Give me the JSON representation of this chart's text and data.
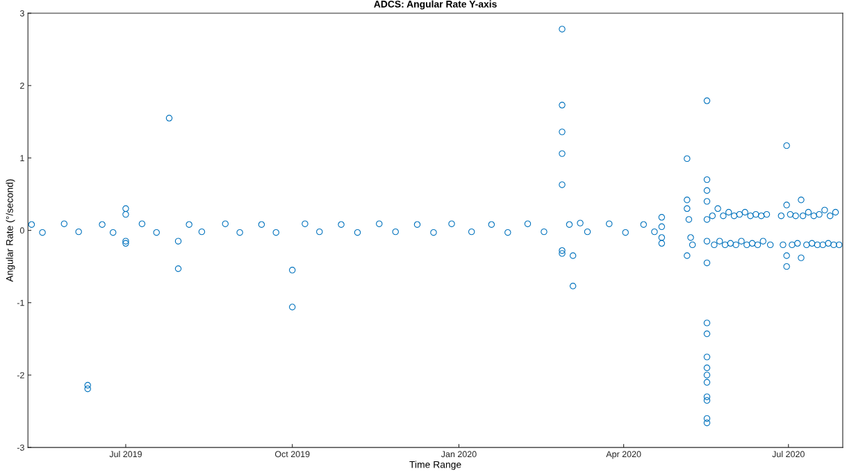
{
  "chart_data": {
    "type": "scatter",
    "title": "ADCS: Angular Rate Y-axis",
    "xlabel": "Time Range",
    "ylabel": "Angular Rate (°/second)",
    "xlim": [
      "2019-05-08",
      "2020-07-31"
    ],
    "ylim": [
      -3,
      3
    ],
    "xticks": [
      {
        "value": "2019-07-01",
        "label": "Jul 2019"
      },
      {
        "value": "2019-10-01",
        "label": "Oct 2019"
      },
      {
        "value": "2020-01-01",
        "label": "Jan 2020"
      },
      {
        "value": "2020-04-01",
        "label": "Apr 2020"
      },
      {
        "value": "2020-07-01",
        "label": "Jul 2020"
      }
    ],
    "yticks": [
      -3,
      -2,
      -1,
      0,
      1,
      2,
      3
    ],
    "grid": false,
    "marker": "circle",
    "series": [
      {
        "color": "#0072bd",
        "x": [
          "2019-05-10",
          "2019-05-16",
          "2019-05-28",
          "2019-06-05",
          "2019-06-18",
          "2019-06-24",
          "2019-07-10",
          "2019-07-18",
          "2019-08-05",
          "2019-08-12",
          "2019-08-25",
          "2019-09-02",
          "2019-09-14",
          "2019-09-22",
          "2019-10-08",
          "2019-10-16",
          "2019-10-28",
          "2019-11-06",
          "2019-11-18",
          "2019-11-27",
          "2019-12-09",
          "2019-12-18",
          "2019-12-28",
          "2020-01-08",
          "2020-01-19",
          "2020-01-28",
          "2020-02-08",
          "2020-02-17",
          "2020-03-02",
          "2020-03-08",
          "2020-03-12",
          "2020-03-24",
          "2020-04-02",
          "2020-04-12",
          "2020-04-18",
          "2019-06-10",
          "2019-06-10",
          "2019-07-01",
          "2019-07-01",
          "2019-07-01",
          "2019-07-01",
          "2019-07-25",
          "2019-07-30",
          "2019-07-30",
          "2019-10-01",
          "2019-10-01",
          "2020-02-27",
          "2020-02-27",
          "2020-02-27",
          "2020-02-27",
          "2020-02-27",
          "2020-02-27",
          "2020-02-27",
          "2020-03-04",
          "2020-03-04",
          "2020-04-22",
          "2020-04-22",
          "2020-04-22",
          "2020-04-22",
          "2020-05-06",
          "2020-05-06",
          "2020-05-06",
          "2020-05-07",
          "2020-05-08",
          "2020-05-09",
          "2020-05-06",
          "2020-05-17",
          "2020-05-17",
          "2020-05-17",
          "2020-05-17",
          "2020-05-17",
          "2020-05-17",
          "2020-05-17",
          "2020-05-17",
          "2020-05-17",
          "2020-05-17",
          "2020-05-17",
          "2020-05-17",
          "2020-05-17",
          "2020-05-17",
          "2020-05-17",
          "2020-05-17",
          "2020-05-17",
          "2020-05-20",
          "2020-05-21",
          "2020-05-23",
          "2020-05-24",
          "2020-05-26",
          "2020-05-27",
          "2020-05-29",
          "2020-05-30",
          "2020-06-01",
          "2020-06-02",
          "2020-06-04",
          "2020-06-05",
          "2020-06-07",
          "2020-06-08",
          "2020-06-10",
          "2020-06-11",
          "2020-06-13",
          "2020-06-14",
          "2020-06-16",
          "2020-06-17",
          "2020-06-19",
          "2020-06-21",
          "2020-06-27",
          "2020-06-28",
          "2020-06-30",
          "2020-06-30",
          "2020-06-30",
          "2020-06-30",
          "2020-07-02",
          "2020-07-03",
          "2020-07-05",
          "2020-07-06",
          "2020-07-08",
          "2020-07-08",
          "2020-07-09",
          "2020-07-11",
          "2020-07-12",
          "2020-07-14",
          "2020-07-15",
          "2020-07-17",
          "2020-07-18",
          "2020-07-20",
          "2020-07-21",
          "2020-07-23",
          "2020-07-24",
          "2020-07-26",
          "2020-07-27",
          "2020-07-29"
        ],
        "values": [
          0.08,
          -0.03,
          0.09,
          -0.02,
          0.08,
          -0.03,
          0.09,
          -0.03,
          0.08,
          -0.02,
          0.09,
          -0.03,
          0.08,
          -0.03,
          0.09,
          -0.02,
          0.08,
          -0.03,
          0.09,
          -0.02,
          0.08,
          -0.03,
          0.09,
          -0.02,
          0.08,
          -0.03,
          0.09,
          -0.02,
          0.08,
          0.1,
          -0.02,
          0.09,
          -0.03,
          0.08,
          -0.02,
          -2.14,
          -2.19,
          0.3,
          0.22,
          -0.15,
          -0.18,
          1.55,
          -0.53,
          -0.15,
          -0.55,
          -1.06,
          2.78,
          1.73,
          1.36,
          1.06,
          0.63,
          -0.28,
          -0.32,
          -0.35,
          -0.77,
          0.18,
          0.05,
          -0.1,
          -0.18,
          0.99,
          0.42,
          0.3,
          0.15,
          -0.1,
          -0.2,
          -0.35,
          1.79,
          0.7,
          0.55,
          0.4,
          0.15,
          -0.15,
          -0.45,
          -1.28,
          -1.43,
          -1.75,
          -1.9,
          -2.0,
          -2.1,
          -2.3,
          -2.35,
          -2.6,
          -2.66,
          0.2,
          -0.2,
          0.3,
          -0.15,
          0.2,
          -0.2,
          0.25,
          -0.18,
          0.2,
          -0.2,
          0.22,
          -0.15,
          0.25,
          -0.2,
          0.2,
          -0.18,
          0.22,
          -0.2,
          0.2,
          -0.15,
          0.22,
          -0.2,
          0.2,
          -0.2,
          1.17,
          0.35,
          -0.35,
          -0.5,
          0.22,
          -0.2,
          0.2,
          -0.18,
          0.42,
          -0.38,
          0.2,
          -0.2,
          0.25,
          -0.18,
          0.2,
          -0.2,
          0.22,
          -0.2,
          0.28,
          -0.18,
          0.2,
          -0.2,
          0.25,
          -0.2
        ]
      }
    ]
  }
}
